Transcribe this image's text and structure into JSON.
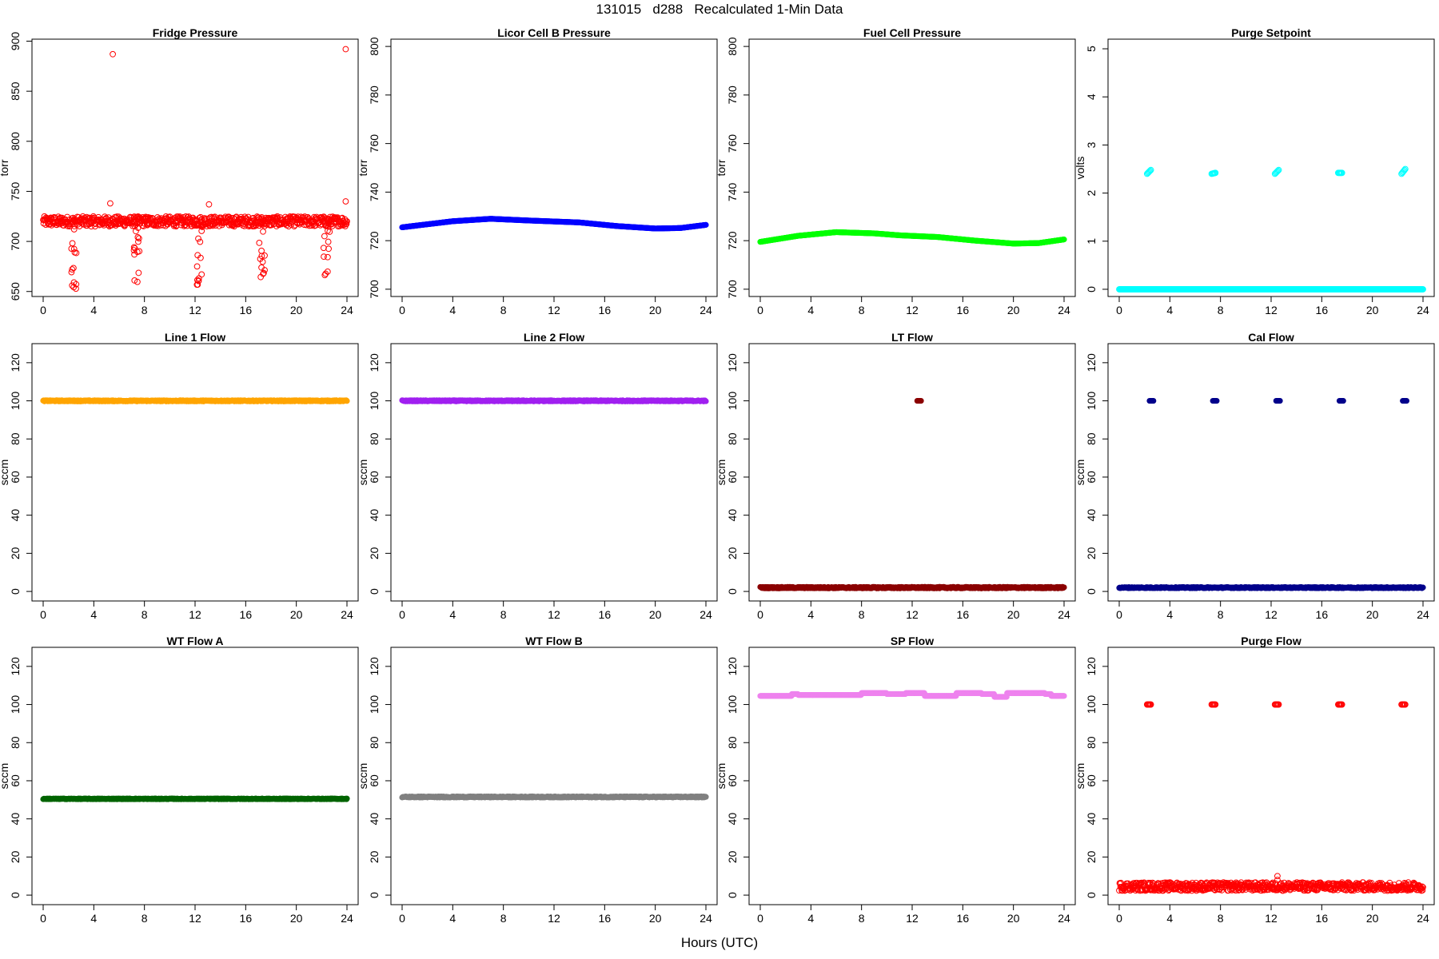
{
  "page": {
    "title": "131015   d288   Recalculated 1-Min Data",
    "xlabel": "Hours (UTC)"
  },
  "chart_data": [
    {
      "type": "scatter",
      "title": "Fridge Pressure",
      "ylabel": "torr",
      "xlim": [
        0,
        24
      ],
      "ylim": [
        645,
        902
      ],
      "xticks": [
        "0",
        "4",
        "8",
        "12",
        "16",
        "20",
        "24"
      ],
      "yticks": [
        "650",
        "700",
        "750",
        "800",
        "850",
        "900"
      ],
      "color": "#ff0000",
      "marker": "open",
      "series": {
        "base": 720,
        "noise": 5,
        "dips": [
          [
            2.4,
            652
          ],
          [
            7.4,
            658
          ],
          [
            12.4,
            656
          ],
          [
            17.3,
            655
          ],
          [
            22.4,
            655
          ]
        ],
        "outliers": [
          [
            5.5,
            887
          ],
          [
            23.9,
            892
          ],
          [
            5.3,
            738
          ],
          [
            23.9,
            740
          ],
          [
            13.1,
            737
          ]
        ]
      }
    },
    {
      "type": "scatter",
      "title": "Licor Cell B Pressure",
      "ylabel": "torr",
      "xlim": [
        0,
        24
      ],
      "ylim": [
        697,
        803
      ],
      "xticks": [
        "0",
        "4",
        "8",
        "12",
        "16",
        "20",
        "24"
      ],
      "yticks": [
        "700",
        "720",
        "740",
        "760",
        "780",
        "800"
      ],
      "color": "#0000ff",
      "marker": "filled",
      "series": {
        "curve": [
          [
            0,
            725.5
          ],
          [
            4,
            728
          ],
          [
            7,
            729
          ],
          [
            10,
            728.3
          ],
          [
            14,
            727.5
          ],
          [
            17,
            726
          ],
          [
            20,
            725
          ],
          [
            22,
            725.2
          ],
          [
            24,
            726.5
          ]
        ]
      }
    },
    {
      "type": "scatter",
      "title": "Fuel Cell Pressure",
      "ylabel": "torr",
      "xlim": [
        0,
        24
      ],
      "ylim": [
        697,
        803
      ],
      "xticks": [
        "0",
        "4",
        "8",
        "12",
        "16",
        "20",
        "24"
      ],
      "yticks": [
        "700",
        "720",
        "740",
        "760",
        "780",
        "800"
      ],
      "color": "#00ff00",
      "marker": "filled",
      "series": {
        "curve": [
          [
            0,
            719.5
          ],
          [
            3,
            722
          ],
          [
            6,
            723.5
          ],
          [
            9,
            723
          ],
          [
            11,
            722.2
          ],
          [
            14,
            721.5
          ],
          [
            17,
            720
          ],
          [
            20,
            718.8
          ],
          [
            22,
            719
          ],
          [
            24,
            720.5
          ]
        ]
      }
    },
    {
      "type": "scatter",
      "title": "Purge Setpoint",
      "ylabel": "volts",
      "xlim": [
        0,
        24
      ],
      "ylim": [
        -0.15,
        5.2
      ],
      "xticks": [
        "0",
        "4",
        "8",
        "12",
        "16",
        "20",
        "24"
      ],
      "yticks": [
        "0",
        "1",
        "2",
        "3",
        "4",
        "5"
      ],
      "color": "#00ffff",
      "marker": "open",
      "series": {
        "base": 0,
        "noise": 0,
        "clusters": [
          [
            2.2,
            2.4,
            2.48
          ],
          [
            7.3,
            2.4,
            2.42
          ],
          [
            12.3,
            2.4,
            2.48
          ],
          [
            17.3,
            2.42,
            2.42
          ],
          [
            22.3,
            2.4,
            2.5
          ]
        ]
      }
    },
    {
      "type": "scatter",
      "title": "Line 1 Flow",
      "ylabel": "sccm",
      "xlim": [
        0,
        24
      ],
      "ylim": [
        -5,
        130
      ],
      "xticks": [
        "0",
        "4",
        "8",
        "12",
        "16",
        "20",
        "24"
      ],
      "yticks": [
        "0",
        "20",
        "40",
        "60",
        "80",
        "100",
        "120"
      ],
      "color": "#ffa500",
      "marker": "filled",
      "series": {
        "base": 100,
        "noise": 0.3
      }
    },
    {
      "type": "scatter",
      "title": "Line 2 Flow",
      "ylabel": "sccm",
      "xlim": [
        0,
        24
      ],
      "ylim": [
        -5,
        130
      ],
      "xticks": [
        "0",
        "4",
        "8",
        "12",
        "16",
        "20",
        "24"
      ],
      "yticks": [
        "0",
        "20",
        "40",
        "60",
        "80",
        "100",
        "120"
      ],
      "color": "#a020f0",
      "marker": "filled",
      "series": {
        "base": 100,
        "noise": 0.3
      }
    },
    {
      "type": "scatter",
      "title": "LT Flow",
      "ylabel": "sccm",
      "xlim": [
        0,
        24
      ],
      "ylim": [
        -5,
        130
      ],
      "xticks": [
        "0",
        "4",
        "8",
        "12",
        "16",
        "20",
        "24"
      ],
      "yticks": [
        "0",
        "20",
        "40",
        "60",
        "80",
        "100",
        "120"
      ],
      "color": "#8b0000",
      "marker": "filled",
      "series": {
        "base": 2,
        "noise": 0.4,
        "clusters": [
          [
            12.4,
            100,
            100
          ]
        ]
      }
    },
    {
      "type": "scatter",
      "title": "Cal Flow",
      "ylabel": "sccm",
      "xlim": [
        0,
        24
      ],
      "ylim": [
        -5,
        130
      ],
      "xticks": [
        "0",
        "4",
        "8",
        "12",
        "16",
        "20",
        "24"
      ],
      "yticks": [
        "0",
        "20",
        "40",
        "60",
        "80",
        "100",
        "120"
      ],
      "color": "#00008b",
      "marker": "filled",
      "series": {
        "base": 2,
        "noise": 0.3,
        "clusters": [
          [
            2.4,
            100,
            100
          ],
          [
            7.4,
            100,
            100
          ],
          [
            12.4,
            100,
            100
          ],
          [
            17.4,
            100,
            100
          ],
          [
            22.4,
            100,
            100
          ]
        ]
      }
    },
    {
      "type": "scatter",
      "title": "WT Flow A",
      "ylabel": "sccm",
      "xlim": [
        0,
        24
      ],
      "ylim": [
        -5,
        130
      ],
      "xticks": [
        "0",
        "4",
        "8",
        "12",
        "16",
        "20",
        "24"
      ],
      "yticks": [
        "0",
        "20",
        "40",
        "60",
        "80",
        "100",
        "120"
      ],
      "color": "#006400",
      "marker": "filled",
      "series": {
        "base": 50.5,
        "noise": 0.2
      }
    },
    {
      "type": "scatter",
      "title": "WT Flow B",
      "ylabel": "sccm",
      "xlim": [
        0,
        24
      ],
      "ylim": [
        -5,
        130
      ],
      "xticks": [
        "0",
        "4",
        "8",
        "12",
        "16",
        "20",
        "24"
      ],
      "yticks": [
        "0",
        "20",
        "40",
        "60",
        "80",
        "100",
        "120"
      ],
      "color": "#808080",
      "marker": "filled",
      "series": {
        "base": 51.5,
        "noise": 0.3
      }
    },
    {
      "type": "scatter",
      "title": "SP Flow",
      "ylabel": "sccm",
      "xlim": [
        0,
        24
      ],
      "ylim": [
        -5,
        130
      ],
      "xticks": [
        "0",
        "4",
        "8",
        "12",
        "16",
        "20",
        "24"
      ],
      "yticks": [
        "0",
        "20",
        "40",
        "60",
        "80",
        "100",
        "120"
      ],
      "color": "#ee82ee",
      "marker": "filled",
      "series": {
        "steps": [
          [
            0,
            104.5
          ],
          [
            2.5,
            105.5
          ],
          [
            3,
            105
          ],
          [
            8,
            106
          ],
          [
            10,
            105.5
          ],
          [
            11.5,
            106
          ],
          [
            13,
            104.5
          ],
          [
            15.5,
            106
          ],
          [
            17.5,
            105.5
          ],
          [
            18.5,
            104
          ],
          [
            19.5,
            106
          ],
          [
            22.5,
            105.5
          ],
          [
            23,
            104.5
          ],
          [
            24,
            104.5
          ]
        ]
      }
    },
    {
      "type": "scatter",
      "title": "Purge Flow",
      "ylabel": "sccm",
      "xlim": [
        0,
        24
      ],
      "ylim": [
        -5,
        130
      ],
      "xticks": [
        "0",
        "4",
        "8",
        "12",
        "16",
        "20",
        "24"
      ],
      "yticks": [
        "0",
        "20",
        "40",
        "60",
        "80",
        "100",
        "120"
      ],
      "color": "#ff0000",
      "marker": "open",
      "series": {
        "base": 4.5,
        "noise": 2.2,
        "clusters": [
          [
            2.2,
            100,
            100
          ],
          [
            7.3,
            100,
            100
          ],
          [
            12.3,
            100,
            100
          ],
          [
            17.3,
            100,
            100
          ],
          [
            22.3,
            100,
            100
          ]
        ],
        "outliers": [
          [
            12.5,
            10
          ],
          [
            12.5,
            8
          ]
        ]
      }
    }
  ]
}
